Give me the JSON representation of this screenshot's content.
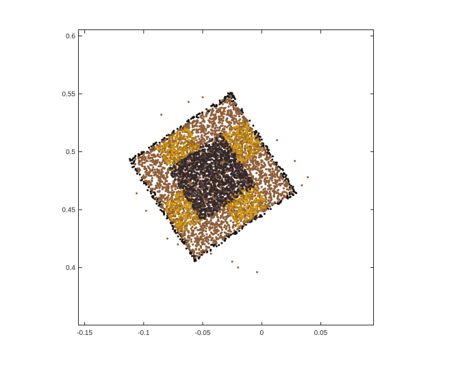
{
  "chart_data": {
    "type": "scatter",
    "title": "",
    "xlabel": "",
    "ylabel": "",
    "xlim": [
      -0.155,
      0.095
    ],
    "ylim": [
      0.35,
      0.605
    ],
    "x_ticks": [
      -0.15,
      -0.1,
      -0.05,
      0,
      0.05
    ],
    "x_tick_labels": [
      "-0.15",
      "-0.1",
      "-0.05",
      "0",
      "0.05"
    ],
    "y_ticks": [
      0.4,
      0.45,
      0.5,
      0.55,
      0.6
    ],
    "y_tick_labels": [
      "0.4",
      "0.45",
      "0.5",
      "0.55",
      "0.6"
    ],
    "grid": false,
    "legend": "none",
    "shape": {
      "description": "rotated square point cloud (approx. 40 degrees) with dark central region and gold corner regions",
      "corners": [
        [
          -0.026,
          0.552
        ],
        [
          0.03,
          0.465
        ],
        [
          -0.06,
          0.404
        ],
        [
          -0.113,
          0.492
        ]
      ],
      "center": [
        -0.042,
        0.478
      ]
    },
    "colors": {
      "edge": "#1a1410",
      "body": "#8f5f3a",
      "core": "#33282a",
      "core_light": "#4e3c40",
      "gold": "#d59a18",
      "gold_dark": "#b07c12",
      "outlier": "#9a5f3c",
      "axis": "#262626"
    }
  }
}
